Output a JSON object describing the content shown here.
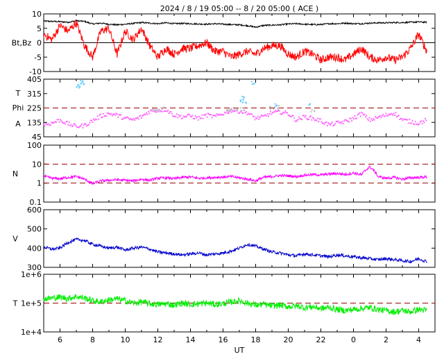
{
  "title": "2024 /  8 / 19   05:00 --  8 / 20   05:00 ( ACE )",
  "colors": {
    "bt": "#000000",
    "bz": "#ff0000",
    "phi": "#ff66ff",
    "phi_alt": "#bbbbbb",
    "theta": "#66ccff",
    "density": "#ff00ff",
    "speed": "#0000cc",
    "temperature": "#00ee00",
    "ref_dash": "#990000"
  },
  "chart_data": [
    {
      "type": "line",
      "panel": "magnetic_field",
      "ylabel": "Bt,Bz",
      "ylim": [
        -10,
        10
      ],
      "yticks": [
        "10",
        "5",
        "0",
        "-5",
        "-10"
      ],
      "zero_line": 0,
      "series": [
        {
          "key": "Bt",
          "x": [
            5,
            5.5,
            6,
            6.5,
            7,
            7.5,
            8,
            8.5,
            9,
            9.5,
            10,
            10.5,
            11,
            11.5,
            12,
            12.5,
            13,
            13.5,
            14,
            14.5,
            15,
            15.5,
            16,
            16.5,
            17,
            17.5,
            18,
            18.5,
            19,
            19.5,
            20,
            20.5,
            21,
            21.5,
            22,
            22.5,
            23,
            23.5,
            24,
            24.5,
            25,
            25.5,
            26,
            26.5,
            27,
            27.5,
            28,
            28.5
          ],
          "values": [
            7.5,
            7.4,
            7.3,
            7.1,
            7.6,
            7.4,
            6.5,
            6.8,
            6.4,
            6.2,
            6.4,
            6.7,
            7.0,
            6.8,
            6.6,
            6.9,
            6.6,
            6.7,
            6.6,
            6.5,
            6.4,
            6.6,
            6.4,
            6.3,
            6.2,
            5.9,
            5.4,
            6.0,
            6.1,
            6.2,
            6.5,
            6.6,
            6.4,
            6.3,
            6.3,
            6.6,
            6.6,
            6.8,
            6.6,
            6.6,
            6.8,
            6.9,
            6.9,
            7.0,
            7.0,
            7.1,
            7.2,
            7.1
          ]
        },
        {
          "key": "Bz",
          "x": [
            5,
            5.5,
            6,
            6.5,
            7,
            7.5,
            8,
            8.5,
            9,
            9.5,
            10,
            10.5,
            11,
            11.5,
            12,
            12.5,
            13,
            13.5,
            14,
            14.5,
            15,
            15.5,
            16,
            16.5,
            17,
            17.5,
            18,
            18.5,
            19,
            19.5,
            20,
            20.5,
            21,
            21.5,
            22,
            22.5,
            23,
            23.5,
            24,
            24.5,
            25,
            25.5,
            26,
            26.5,
            27,
            27.5,
            28,
            28.5
          ],
          "values": [
            3,
            1,
            6,
            4,
            7,
            -1,
            -5,
            4,
            5,
            -4,
            4,
            1,
            5,
            -1,
            -5,
            -2,
            -4,
            -2,
            -2,
            -1,
            0,
            -3,
            -3,
            -5,
            -4,
            -3,
            -4,
            -2,
            -1,
            -1,
            -4,
            -5,
            -3,
            -4,
            -6,
            -5,
            -5,
            -6,
            -4,
            -2,
            -5,
            -6,
            -5,
            -6,
            -5,
            -2,
            3,
            -3
          ]
        }
      ]
    },
    {
      "type": "scatter",
      "panel": "angles",
      "ylabel_lines": [
        "T",
        "Phi",
        "A"
      ],
      "ylim": [
        45,
        405
      ],
      "yticks": [
        "405",
        "315",
        "225",
        "135",
        "45"
      ],
      "ref_lines": [
        225
      ],
      "series": [
        {
          "key": "Phi",
          "x": [
            5,
            5.5,
            6,
            6.5,
            7,
            7.5,
            8,
            8.5,
            9,
            9.5,
            10,
            10.5,
            11,
            11.5,
            12,
            12.5,
            13,
            13.5,
            14,
            14.5,
            15,
            15.5,
            16,
            16.5,
            17,
            17.5,
            18,
            18.5,
            19,
            19.5,
            20,
            20.5,
            21,
            21.5,
            22,
            22.5,
            23,
            23.5,
            24,
            24.5,
            25,
            25.5,
            26,
            26.5,
            27,
            27.5,
            28,
            28.5
          ],
          "values": [
            120,
            130,
            150,
            125,
            110,
            115,
            145,
            175,
            190,
            180,
            160,
            150,
            170,
            205,
            210,
            215,
            180,
            170,
            175,
            160,
            180,
            170,
            190,
            210,
            205,
            195,
            160,
            170,
            195,
            200,
            190,
            150,
            170,
            160,
            145,
            120,
            130,
            140,
            160,
            190,
            150,
            165,
            180,
            195,
            150,
            140,
            130,
            150
          ]
        },
        {
          "key": "Phi (grey)",
          "x": [
            11.8,
            12.0,
            12.3,
            16.2,
            16.5,
            16.8,
            17.2,
            19.0,
            19.3,
            21.5
          ],
          "values": [
            210,
            215,
            220,
            205,
            212,
            220,
            215,
            225,
            230,
            210
          ]
        },
        {
          "key": "Theta",
          "x": [
            7.1,
            7.2,
            7.3,
            7.35,
            17.1,
            17.2,
            17.3,
            17.8,
            19.2,
            21.4
          ],
          "values": [
            350,
            370,
            390,
            380,
            275,
            290,
            260,
            380,
            240,
            240
          ]
        }
      ]
    },
    {
      "type": "line",
      "panel": "density",
      "ylabel": "N",
      "scale": "log",
      "ylim": [
        0.1,
        100
      ],
      "yticks": [
        "100",
        "10",
        "1",
        "0.1"
      ],
      "ref_lines": [
        1,
        10
      ],
      "series": [
        {
          "key": "N",
          "x": [
            5,
            5.5,
            6,
            6.5,
            7,
            7.5,
            8,
            8.5,
            9,
            9.5,
            10,
            10.5,
            11,
            11.5,
            12,
            12.5,
            13,
            13.5,
            14,
            14.5,
            15,
            15.5,
            16,
            16.5,
            17,
            17.5,
            18,
            18.5,
            19,
            19.5,
            20,
            20.5,
            21,
            21.5,
            22,
            22.5,
            23,
            23.5,
            24,
            24.5,
            25,
            25.5,
            26,
            26.5,
            27,
            27.5,
            28,
            28.5
          ],
          "values": [
            2.3,
            1.8,
            1.7,
            2.0,
            2.2,
            1.6,
            0.9,
            1.3,
            1.4,
            1.5,
            1.4,
            1.3,
            1.6,
            1.4,
            1.8,
            1.9,
            1.7,
            2.0,
            2.1,
            1.8,
            1.9,
            2.0,
            2.1,
            2.2,
            1.9,
            1.6,
            1.3,
            2.0,
            2.2,
            2.5,
            2.4,
            2.2,
            2.6,
            2.8,
            2.7,
            3.0,
            3.2,
            2.8,
            3.4,
            2.7,
            7.0,
            2.2,
            1.8,
            2.0,
            1.6,
            1.9,
            2.0,
            2.1
          ]
        }
      ]
    },
    {
      "type": "line",
      "panel": "speed",
      "ylabel": "V",
      "ylim": [
        300,
        600
      ],
      "yticks": [
        "600",
        "500",
        "400",
        "300"
      ],
      "series": [
        {
          "key": "V",
          "x": [
            5,
            5.5,
            6,
            6.5,
            7,
            7.5,
            8,
            8.5,
            9,
            9.5,
            10,
            10.5,
            11,
            11.5,
            12,
            12.5,
            13,
            13.5,
            14,
            14.5,
            15,
            15.5,
            16,
            16.5,
            17,
            17.5,
            18,
            18.5,
            19,
            19.5,
            20,
            20.5,
            21,
            21.5,
            22,
            22.5,
            23,
            23.5,
            24,
            24.5,
            25,
            25.5,
            26,
            26.5,
            27,
            27.5,
            28,
            28.5
          ],
          "values": [
            405,
            395,
            400,
            430,
            445,
            440,
            420,
            410,
            400,
            405,
            390,
            400,
            405,
            395,
            380,
            375,
            370,
            365,
            370,
            375,
            365,
            370,
            375,
            385,
            400,
            420,
            410,
            395,
            380,
            375,
            365,
            360,
            370,
            365,
            360,
            355,
            365,
            360,
            355,
            350,
            345,
            340,
            345,
            340,
            335,
            330,
            345,
            330
          ]
        }
      ]
    },
    {
      "type": "line",
      "panel": "temperature",
      "ylabel": "T",
      "scale": "log",
      "ylim": [
        10000,
        1000000
      ],
      "yticks": [
        "1e+6",
        "1e+5",
        "1e+4"
      ],
      "ref_lines": [
        100000
      ],
      "series": [
        {
          "key": "T",
          "x": [
            5,
            5.5,
            6,
            6.5,
            7,
            7.5,
            8,
            8.5,
            9,
            9.5,
            10,
            10.5,
            11,
            11.5,
            12,
            12.5,
            13,
            13.5,
            14,
            14.5,
            15,
            15.5,
            16,
            16.5,
            17,
            17.5,
            18,
            18.5,
            19,
            19.5,
            20,
            20.5,
            21,
            21.5,
            22,
            22.5,
            23,
            23.5,
            24,
            24.5,
            25,
            25.5,
            26,
            26.5,
            27,
            27.5,
            28,
            28.5
          ],
          "values": [
            140000,
            150000,
            160000,
            145000,
            170000,
            150000,
            120000,
            110000,
            130000,
            140000,
            120000,
            100000,
            110000,
            95000,
            90000,
            95000,
            85000,
            100000,
            90000,
            95000,
            100000,
            90000,
            95000,
            110000,
            120000,
            100000,
            85000,
            90000,
            80000,
            85000,
            75000,
            80000,
            70000,
            75000,
            65000,
            70000,
            60000,
            55000,
            60000,
            65000,
            70000,
            60000,
            55000,
            50000,
            55000,
            50000,
            60000,
            55000
          ]
        }
      ]
    }
  ],
  "xaxis": {
    "label": "UT",
    "tick_labels": [
      "6",
      "8",
      "10",
      "12",
      "14",
      "16",
      "18",
      "20",
      "22",
      "0",
      "2",
      "4"
    ]
  }
}
